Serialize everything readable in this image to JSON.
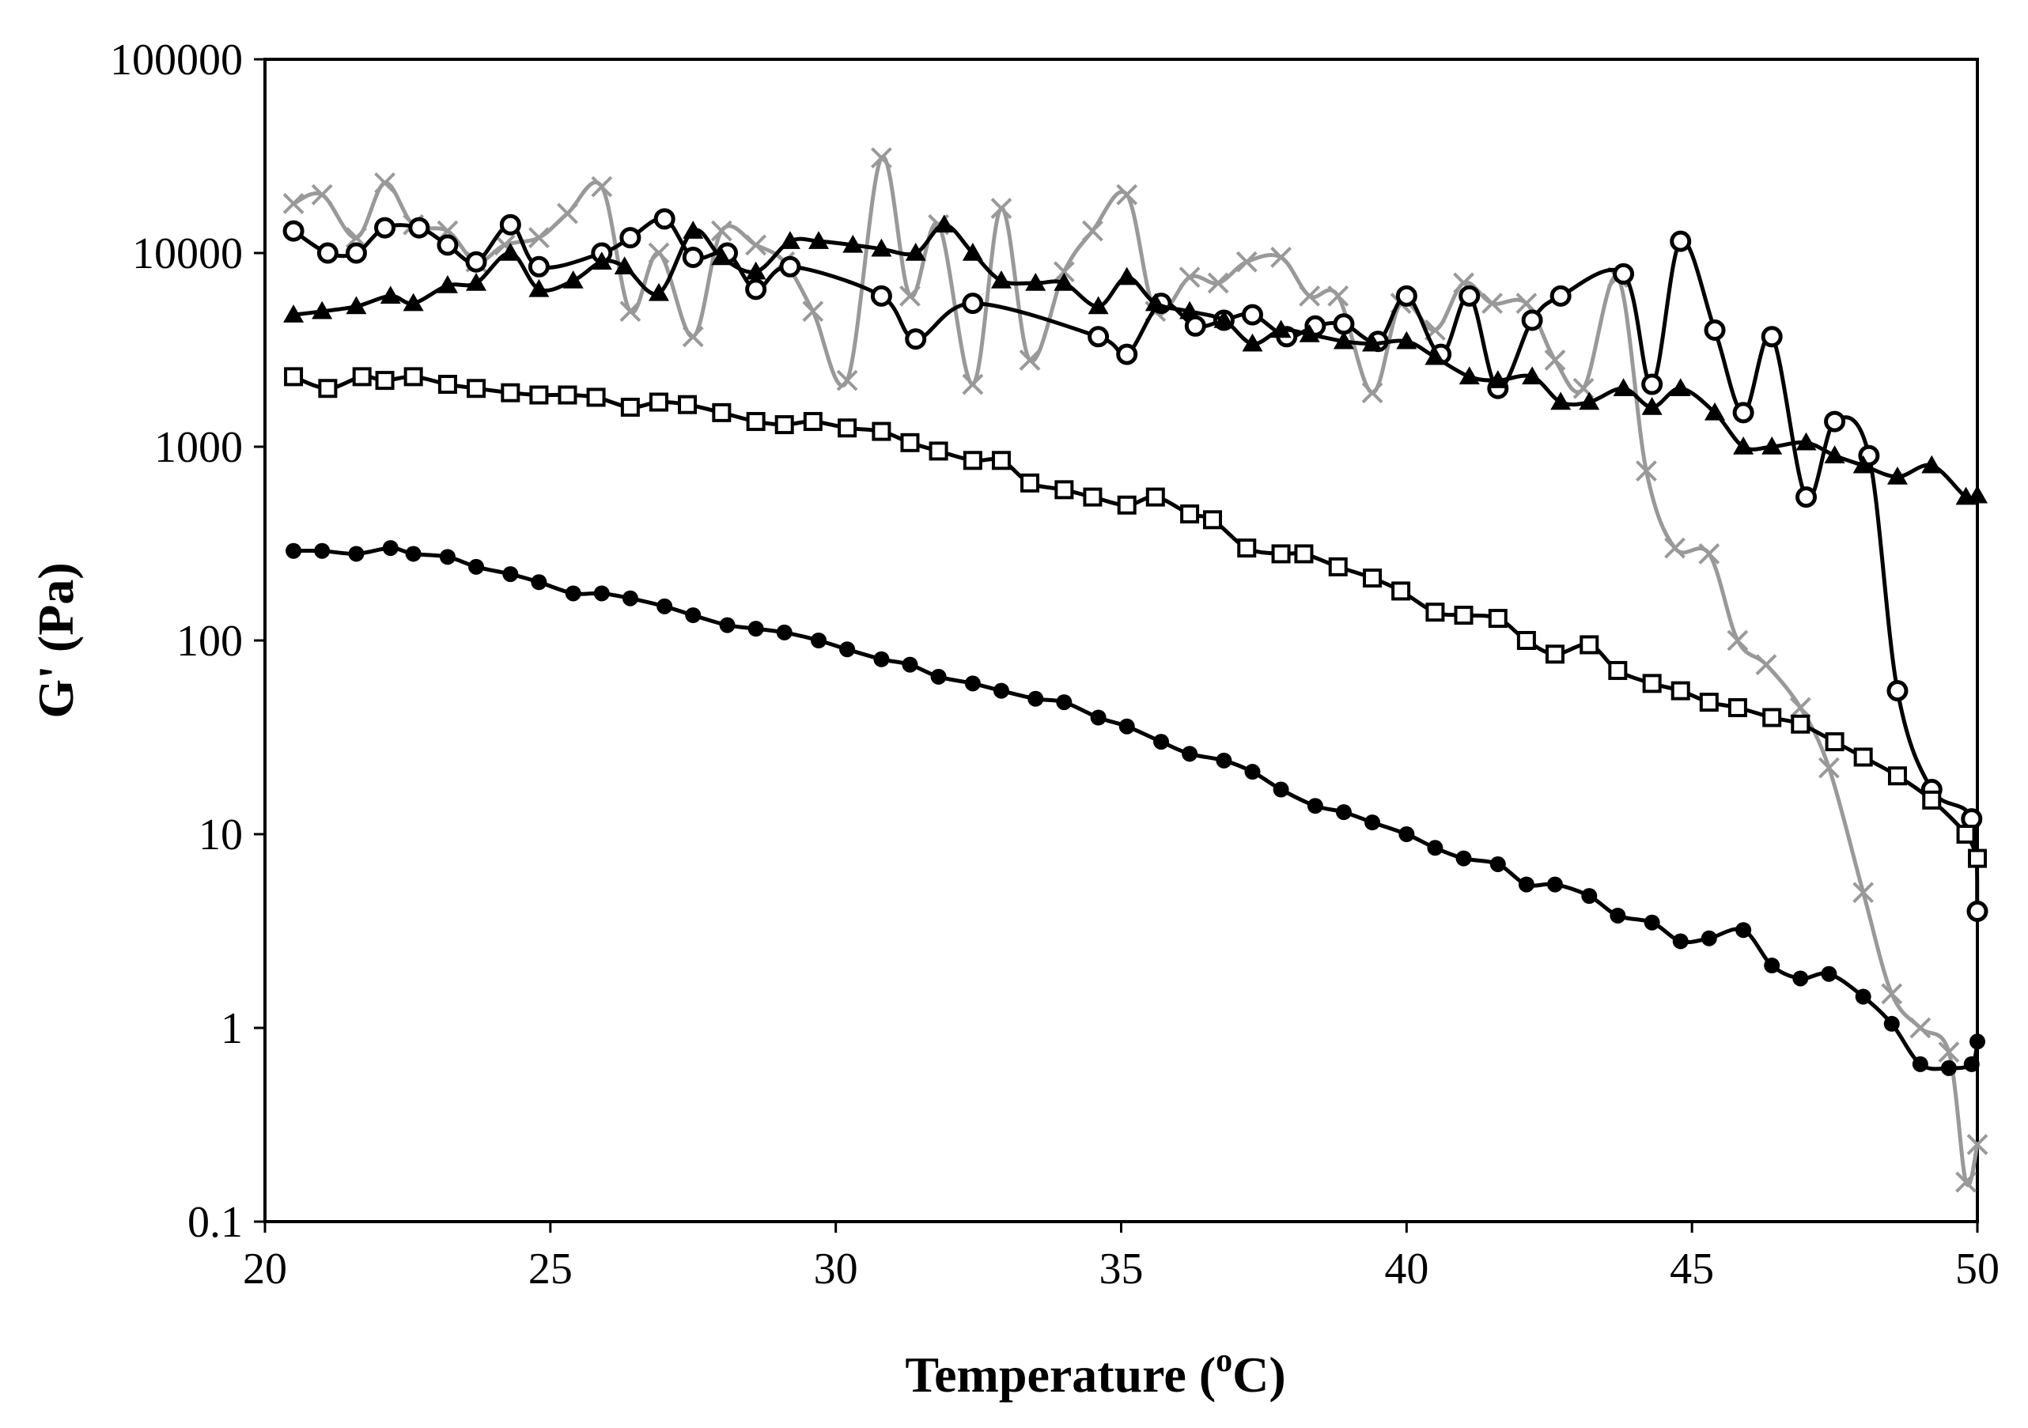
{
  "chart_data": {
    "type": "line",
    "title": "",
    "xlabel": "Temperature (",
    "xlabel_super": "o",
    "xlabel_end": "C)",
    "ylabel": "G' (Pa)",
    "xlim": [
      20,
      50
    ],
    "ylim": [
      0.1,
      100000
    ],
    "yscale": "log",
    "x_ticks": [
      20,
      25,
      30,
      35,
      40,
      45,
      50
    ],
    "x_tick_labels": [
      "20",
      "25",
      "30",
      "35",
      "40",
      "45",
      "50"
    ],
    "y_ticks": [
      0.1,
      1,
      10,
      100,
      1000,
      10000,
      100000
    ],
    "y_tick_labels": [
      "0.1",
      "1",
      "10",
      "100",
      "1000",
      "10000",
      "100000"
    ],
    "series": [
      {
        "name": "series-gray-x",
        "marker": "x",
        "color": "#999999",
        "x": [
          20.5,
          21.0,
          21.6,
          22.1,
          22.6,
          23.2,
          23.7,
          24.2,
          24.8,
          25.3,
          25.9,
          26.4,
          26.9,
          27.5,
          28.0,
          28.6,
          29.1,
          29.6,
          30.2,
          30.8,
          31.3,
          31.8,
          32.4,
          32.9,
          33.4,
          34.0,
          34.5,
          35.1,
          35.6,
          36.2,
          36.7,
          37.2,
          37.8,
          38.3,
          38.8,
          39.4,
          39.9,
          40.5,
          41.0,
          41.5,
          42.1,
          42.6,
          43.1,
          43.7,
          44.2,
          44.7,
          45.3,
          45.8,
          46.3,
          46.9,
          47.4,
          48.0,
          48.5,
          49.0,
          49.5,
          49.8,
          50.0
        ],
        "values": [
          18000,
          20000,
          12000,
          23000,
          14000,
          13000,
          9000,
          11000,
          12000,
          16000,
          22000,
          5000,
          10000,
          3700,
          13000,
          11000,
          9000,
          5000,
          2200,
          31000,
          6000,
          14000,
          2100,
          17000,
          2800,
          8000,
          13000,
          20000,
          5000,
          7500,
          7000,
          9000,
          9500,
          6000,
          6000,
          1900,
          5500,
          4000,
          7000,
          5500,
          5500,
          2800,
          2000,
          7500,
          750,
          300,
          280,
          100,
          75,
          45,
          22,
          5,
          1.5,
          1.0,
          0.75,
          0.16,
          0.25
        ]
      },
      {
        "name": "series-open-circle",
        "marker": "open-circle",
        "color": "#000000",
        "x": [
          20.5,
          21.1,
          21.6,
          22.1,
          22.7,
          23.2,
          23.7,
          24.3,
          24.8,
          25.9,
          26.4,
          27.0,
          27.5,
          28.1,
          28.6,
          29.2,
          30.8,
          31.4,
          32.4,
          34.6,
          35.1,
          35.7,
          36.3,
          36.8,
          37.3,
          37.9,
          38.4,
          38.9,
          39.5,
          40.0,
          40.6,
          41.1,
          41.6,
          42.2,
          42.7,
          43.8,
          44.3,
          44.8,
          45.4,
          45.9,
          46.4,
          47.0,
          47.5,
          48.1,
          48.6,
          49.2,
          49.9,
          50.0
        ],
        "values": [
          13000,
          10000,
          10000,
          13500,
          13500,
          11000,
          9000,
          14000,
          8500,
          10000,
          12000,
          15000,
          9500,
          10000,
          6500,
          8500,
          6000,
          3600,
          5500,
          3700,
          3000,
          5500,
          4200,
          4500,
          4800,
          3700,
          4200,
          4300,
          3500,
          6000,
          3000,
          6000,
          2000,
          4500,
          6000,
          7800,
          2100,
          11500,
          4000,
          1500,
          3700,
          550,
          1350,
          900,
          55,
          17,
          12,
          4
        ]
      },
      {
        "name": "series-filled-triangle",
        "marker": "filled-triangle",
        "color": "#000000",
        "x": [
          20.5,
          21.0,
          21.6,
          22.2,
          22.6,
          23.2,
          23.7,
          24.3,
          24.8,
          25.4,
          25.9,
          26.3,
          26.9,
          27.5,
          28.0,
          28.6,
          29.2,
          29.7,
          30.3,
          30.8,
          31.4,
          31.9,
          32.4,
          32.9,
          33.5,
          34.0,
          34.6,
          35.1,
          35.6,
          36.2,
          36.8,
          37.3,
          37.8,
          38.3,
          38.9,
          39.4,
          40.0,
          40.5,
          41.1,
          41.6,
          42.2,
          42.7,
          43.2,
          43.8,
          44.3,
          44.8,
          45.4,
          45.9,
          46.4,
          47.0,
          47.5,
          48.0,
          48.6,
          49.2,
          49.8,
          50.0
        ],
        "values": [
          4800,
          5000,
          5300,
          6000,
          5500,
          6800,
          7000,
          10000,
          6500,
          7200,
          9000,
          8500,
          6200,
          13000,
          9500,
          8000,
          11500,
          11500,
          11000,
          10500,
          10000,
          14000,
          10000,
          7200,
          7000,
          7000,
          5300,
          7500,
          5500,
          5000,
          4500,
          3400,
          4000,
          3800,
          3500,
          3400,
          3500,
          2900,
          2300,
          2200,
          2300,
          1700,
          1700,
          2000,
          1600,
          2000,
          1500,
          1000,
          1000,
          1050,
          900,
          800,
          700,
          800,
          550,
          560
        ]
      },
      {
        "name": "series-open-square",
        "marker": "open-square",
        "color": "#000000",
        "x": [
          20.5,
          21.1,
          21.7,
          22.1,
          22.6,
          23.2,
          23.7,
          24.3,
          24.8,
          25.3,
          25.8,
          26.4,
          26.9,
          27.4,
          28.0,
          28.6,
          29.1,
          29.6,
          30.2,
          30.8,
          31.3,
          31.8,
          32.4,
          32.9,
          33.4,
          34.0,
          34.5,
          35.1,
          35.6,
          36.2,
          36.6,
          37.2,
          37.8,
          38.2,
          38.8,
          39.4,
          39.9,
          40.5,
          41.0,
          41.6,
          42.1,
          42.6,
          43.2,
          43.7,
          44.3,
          44.8,
          45.3,
          45.8,
          46.4,
          46.9,
          47.5,
          48.0,
          48.6,
          49.2,
          49.8,
          50.0
        ],
        "values": [
          2300,
          2000,
          2300,
          2200,
          2300,
          2100,
          2000,
          1900,
          1850,
          1850,
          1800,
          1600,
          1700,
          1650,
          1500,
          1350,
          1300,
          1350,
          1250,
          1200,
          1050,
          950,
          850,
          850,
          650,
          600,
          550,
          500,
          550,
          450,
          420,
          300,
          280,
          280,
          240,
          210,
          180,
          140,
          135,
          130,
          100,
          85,
          95,
          70,
          60,
          55,
          48,
          45,
          40,
          37,
          30,
          25,
          20,
          15,
          10,
          7.5
        ]
      },
      {
        "name": "series-filled-circle",
        "marker": "filled-circle",
        "color": "#000000",
        "x": [
          20.5,
          21.0,
          21.6,
          22.2,
          22.6,
          23.2,
          23.7,
          24.3,
          24.8,
          25.4,
          25.9,
          26.4,
          27.0,
          27.5,
          28.1,
          28.6,
          29.1,
          29.7,
          30.2,
          30.8,
          31.3,
          31.8,
          32.4,
          32.9,
          33.5,
          34.0,
          34.6,
          35.1,
          35.7,
          36.2,
          36.8,
          37.3,
          37.8,
          38.4,
          38.9,
          39.4,
          40.0,
          40.5,
          41.0,
          41.6,
          42.1,
          42.6,
          43.2,
          43.7,
          44.3,
          44.8,
          45.3,
          45.9,
          46.4,
          46.9,
          47.4,
          48.0,
          48.5,
          49.0,
          49.5,
          49.9,
          50.0
        ],
        "values": [
          290,
          290,
          280,
          300,
          280,
          270,
          240,
          220,
          200,
          175,
          175,
          165,
          150,
          135,
          120,
          115,
          110,
          100,
          90,
          80,
          75,
          65,
          60,
          55,
          50,
          48,
          40,
          36,
          30,
          26,
          24,
          21,
          17,
          14,
          13,
          11.5,
          10,
          8.5,
          7.5,
          7,
          5.5,
          5.5,
          4.8,
          3.8,
          3.5,
          2.8,
          2.9,
          3.2,
          2.1,
          1.8,
          1.9,
          1.45,
          1.05,
          0.65,
          0.62,
          0.65,
          0.85
        ]
      }
    ]
  }
}
